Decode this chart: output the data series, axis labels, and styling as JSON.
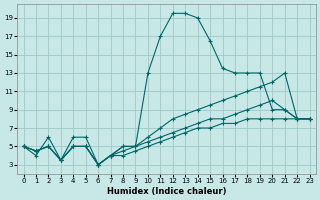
{
  "xlabel": "Humidex (Indice chaleur)",
  "bg_color": "#c8e8e8",
  "grid_color": "#a0c8c8",
  "line_color": "#006666",
  "xlim": [
    -0.5,
    23.5
  ],
  "ylim": [
    2.0,
    20.5
  ],
  "xticks": [
    0,
    1,
    2,
    3,
    4,
    5,
    6,
    7,
    8,
    9,
    10,
    11,
    12,
    13,
    14,
    15,
    16,
    17,
    18,
    19,
    20,
    21,
    22,
    23
  ],
  "yticks": [
    3,
    5,
    7,
    9,
    11,
    13,
    15,
    17,
    19
  ],
  "series": [
    {
      "x": [
        0,
        1,
        2,
        3,
        4,
        5,
        6,
        7,
        8,
        9,
        10,
        11,
        12,
        13,
        14,
        15,
        16,
        17,
        18,
        19,
        20,
        21,
        22,
        23
      ],
      "y": [
        5,
        4,
        6,
        3.5,
        6,
        6,
        3,
        4,
        5,
        5,
        13,
        17,
        19.5,
        19.5,
        19,
        16.5,
        13.5,
        13,
        13,
        13,
        9,
        9,
        8,
        8
      ]
    },
    {
      "x": [
        0,
        1,
        2,
        3,
        4,
        5,
        6,
        7,
        8,
        9,
        10,
        11,
        12,
        13,
        14,
        15,
        16,
        17,
        18,
        19,
        20,
        21,
        22,
        23
      ],
      "y": [
        5,
        4.5,
        5,
        3.5,
        5,
        5,
        3,
        4,
        5,
        5,
        6,
        7,
        8,
        8.5,
        9,
        9.5,
        10,
        10.5,
        11,
        11.5,
        12,
        13,
        8,
        8
      ]
    },
    {
      "x": [
        0,
        1,
        2,
        3,
        4,
        5,
        6,
        7,
        8,
        9,
        10,
        11,
        12,
        13,
        14,
        15,
        16,
        17,
        18,
        19,
        20,
        21,
        22,
        23
      ],
      "y": [
        5,
        4.5,
        5,
        3.5,
        5,
        5,
        3,
        4,
        4.5,
        5,
        5.5,
        6,
        6.5,
        7,
        7.5,
        8,
        8,
        8.5,
        9,
        9.5,
        10,
        9,
        8,
        8
      ]
    },
    {
      "x": [
        0,
        1,
        2,
        3,
        4,
        5,
        6,
        7,
        8,
        9,
        10,
        11,
        12,
        13,
        14,
        15,
        16,
        17,
        18,
        19,
        20,
        21,
        22,
        23
      ],
      "y": [
        5,
        4.5,
        5,
        3.5,
        5,
        5,
        3,
        4,
        4,
        4.5,
        5,
        5.5,
        6,
        6.5,
        7,
        7,
        7.5,
        7.5,
        8,
        8,
        8,
        8,
        8,
        8
      ]
    }
  ]
}
